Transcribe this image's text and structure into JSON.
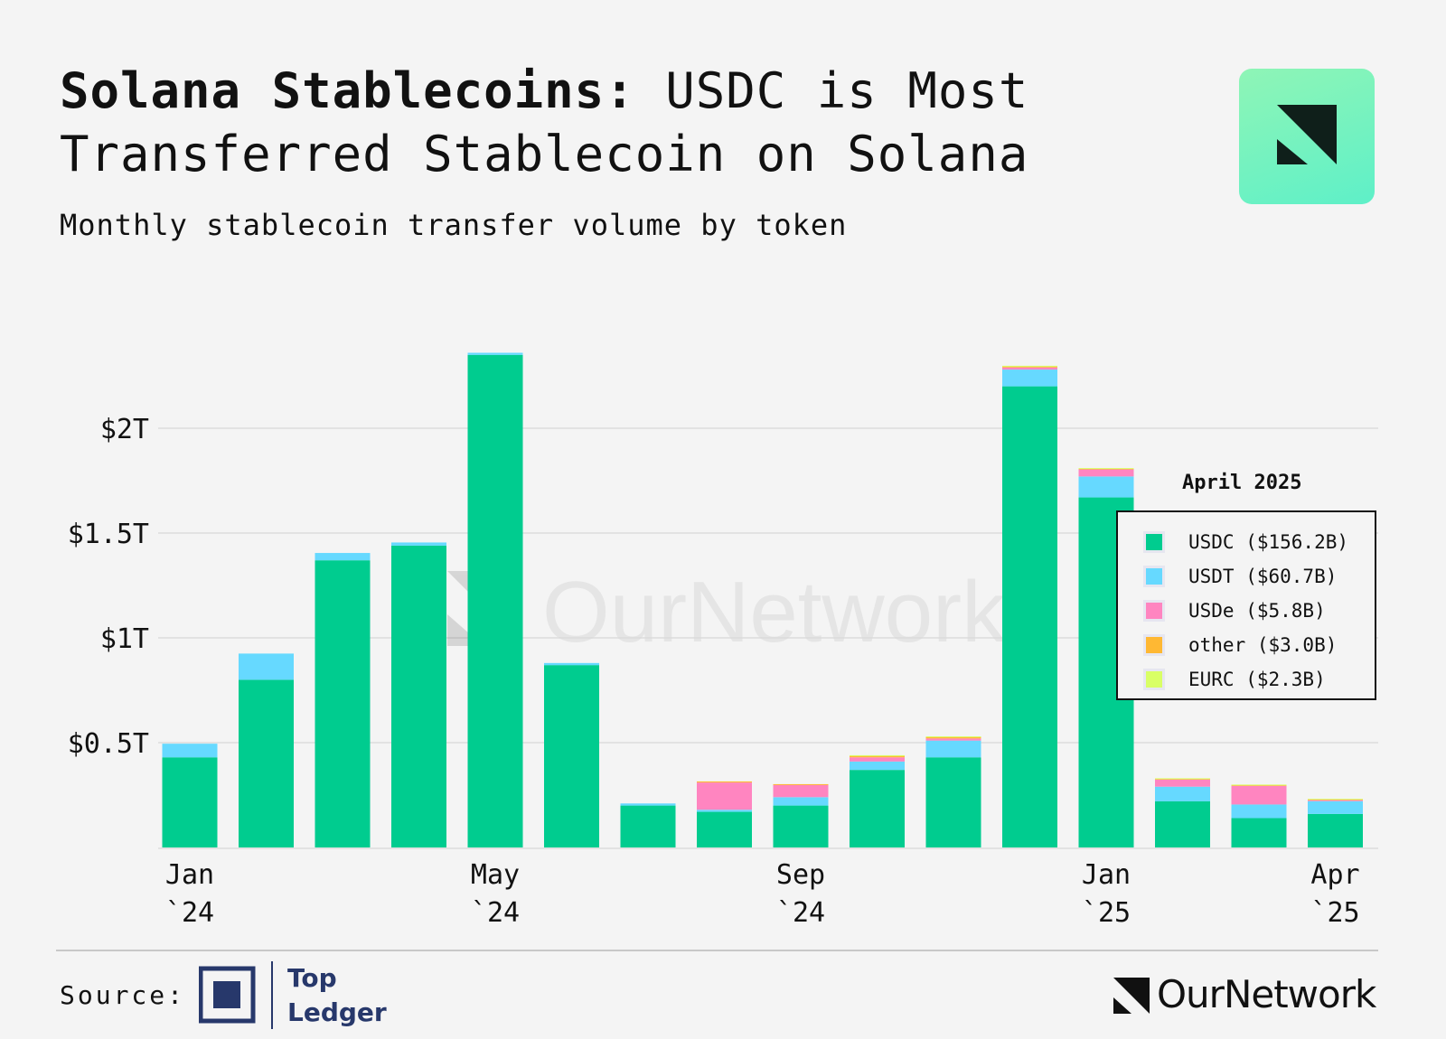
{
  "header": {
    "title_bold": "Solana Stablecoins:",
    "title_rest": " USDC is Most Transferred Stablecoin on Solana",
    "subtitle": "Monthly stablecoin transfer volume by token"
  },
  "watermark": "OurNetwork",
  "footer": {
    "source_label": "Source:",
    "source_name": "Top Ledger",
    "brand": "OurNetwork"
  },
  "colors": {
    "USDC": "#00cc8f",
    "USDT": "#66d9ff",
    "USDe": "#ff85c0",
    "other": "#ffb833",
    "EURC": "#d9ff66",
    "grid": "#e2e2e2",
    "background": "#f4f4f4"
  },
  "chart_data": {
    "type": "bar",
    "stacked": true,
    "categories": [
      "Jan 2024",
      "Feb 2024",
      "Mar 2024",
      "Apr 2024",
      "May 2024",
      "Jun 2024",
      "Jul 2024",
      "Aug 2024",
      "Sep 2024",
      "Oct 2024",
      "Nov 2024",
      "Dec 2024",
      "Jan 2025",
      "Feb 2025",
      "Mar 2025",
      "Apr 2025"
    ],
    "x_tick_labels": [
      {
        "index": 0,
        "line1": "Jan",
        "line2": "`24"
      },
      {
        "index": 4,
        "line1": "May",
        "line2": "`24"
      },
      {
        "index": 8,
        "line1": "Sep",
        "line2": "`24"
      },
      {
        "index": 12,
        "line1": "Jan",
        "line2": "`25"
      },
      {
        "index": 15,
        "line1": "Apr",
        "line2": "`25"
      }
    ],
    "y_ticks": [
      {
        "value": 0.5,
        "label": "$0.5T"
      },
      {
        "value": 1,
        "label": "$1T"
      },
      {
        "value": 1.5,
        "label": "$1.5T"
      },
      {
        "value": 2,
        "label": "$2T"
      }
    ],
    "y_unit": "trillions USD",
    "ylim": [
      0,
      2.4
    ],
    "grid": true,
    "series": [
      {
        "name": "USDC",
        "values": [
          0.43,
          0.8,
          1.37,
          1.44,
          2.35,
          0.87,
          0.2,
          0.17,
          0.2,
          0.37,
          0.43,
          2.2,
          1.67,
          0.22,
          0.14,
          0.16
        ]
      },
      {
        "name": "USDT",
        "values": [
          0.065,
          0.125,
          0.035,
          0.015,
          0.01,
          0.01,
          0.01,
          0.01,
          0.04,
          0.04,
          0.08,
          0.08,
          0.1,
          0.07,
          0.065,
          0.061
        ]
      },
      {
        "name": "USDe",
        "values": [
          0,
          0,
          0,
          0,
          0,
          0,
          0,
          0.13,
          0.06,
          0.02,
          0.01,
          0.01,
          0.035,
          0.035,
          0.09,
          0.006
        ]
      },
      {
        "name": "other",
        "values": [
          0,
          0,
          0,
          0,
          0,
          0,
          0,
          0.005,
          0.002,
          0.008,
          0.008,
          0.006,
          0.003,
          0.003,
          0.003,
          0.003
        ]
      },
      {
        "name": "EURC",
        "values": [
          0,
          0,
          0,
          0,
          0,
          0,
          0,
          0,
          0,
          0.002,
          0.002,
          0.002,
          0.002,
          0.002,
          0.002,
          0.002
        ]
      }
    ],
    "legend": {
      "title": "April 2025",
      "placement": "right",
      "items": [
        {
          "name": "USDC",
          "label": "USDC ($156.2B)"
        },
        {
          "name": "USDT",
          "label": "USDT ($60.7B)"
        },
        {
          "name": "USDe",
          "label": "USDe ($5.8B)"
        },
        {
          "name": "other",
          "label": "other ($3.0B)"
        },
        {
          "name": "EURC",
          "label": "EURC ($2.3B)"
        }
      ]
    }
  }
}
